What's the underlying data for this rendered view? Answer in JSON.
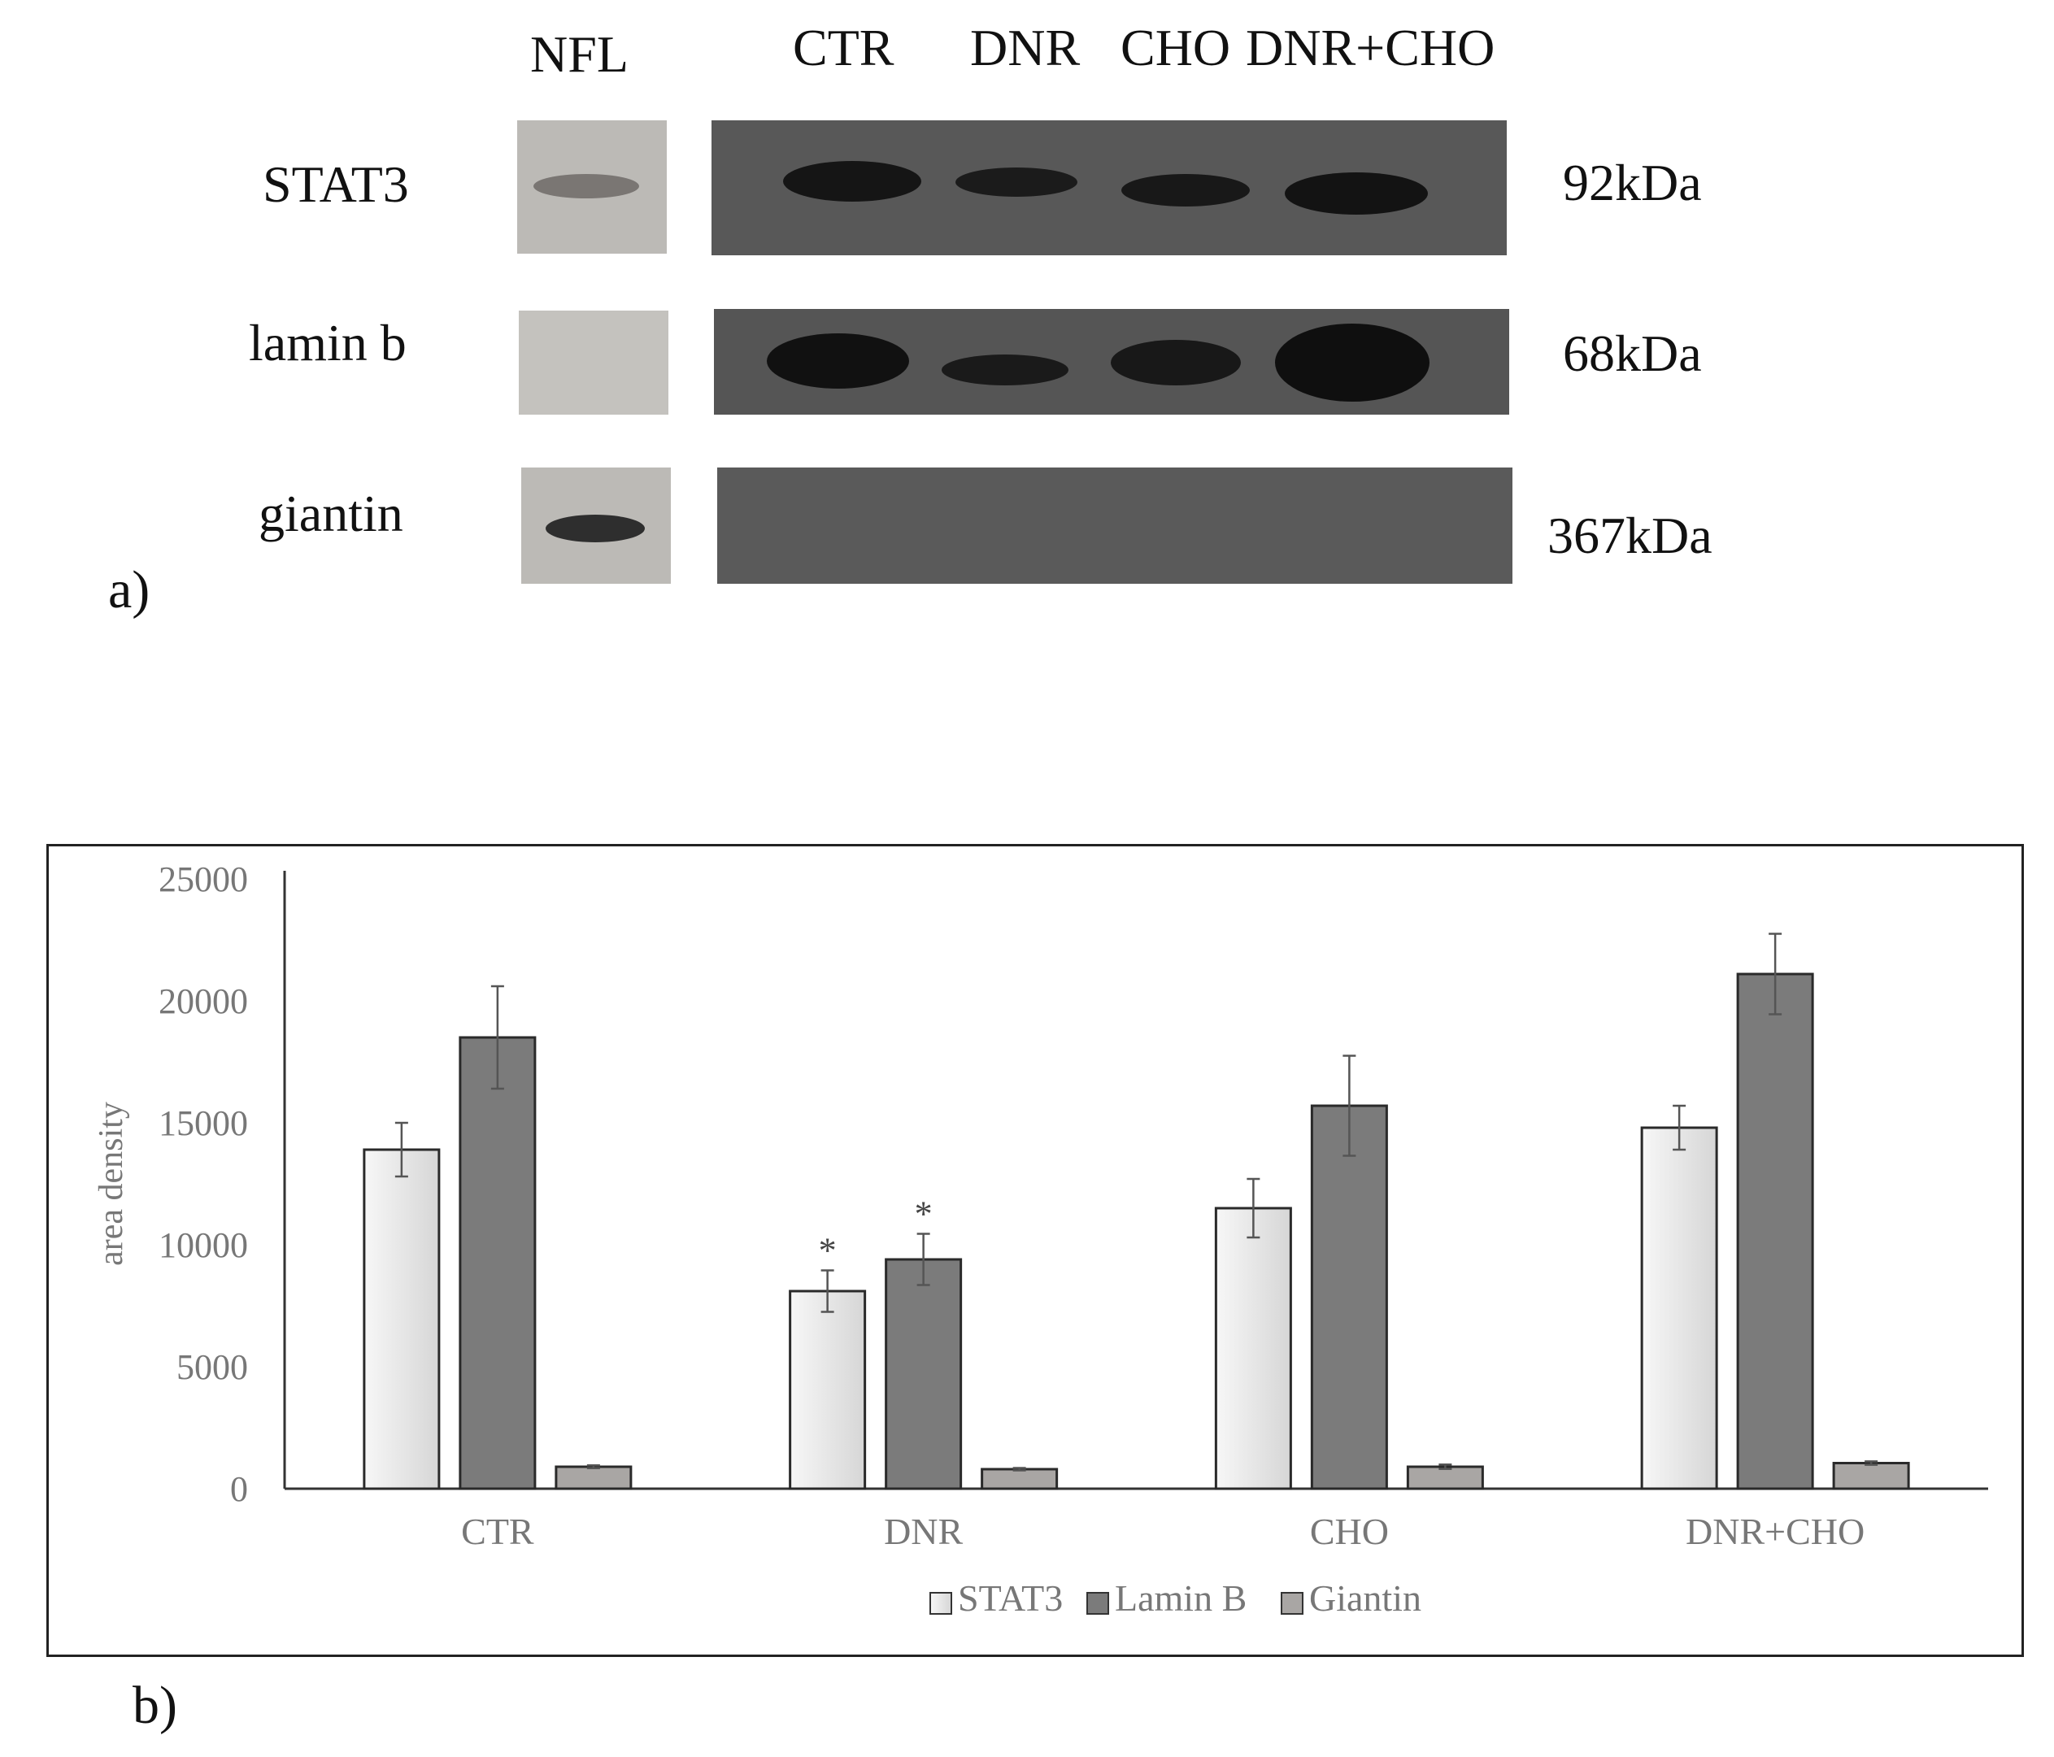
{
  "blot": {
    "lanes": [
      "NFL",
      "CTR",
      "DNR",
      "CHO",
      "DNR+CHO"
    ],
    "rows": [
      {
        "label": "STAT3",
        "kda": "92kDa"
      },
      {
        "label": "lamin b",
        "kda": "68kDa"
      },
      {
        "label": "giantin",
        "kda": "367kDa"
      }
    ],
    "panel_label": "a)"
  },
  "chart_panel_label": "b)",
  "chart_data": {
    "type": "bar",
    "categories": [
      "CTR",
      "DNR",
      "CHO",
      "DNR+CHO"
    ],
    "series": [
      {
        "name": "STAT3",
        "values": [
          13900,
          8100,
          11500,
          14800
        ],
        "errors": [
          1100,
          850,
          1200,
          900
        ],
        "color": "#eeeeee"
      },
      {
        "name": "Lamin B",
        "values": [
          18500,
          9400,
          15700,
          21100
        ],
        "errors": [
          2100,
          1050,
          2050,
          1650
        ],
        "color": "#7b7b7b"
      },
      {
        "name": "Giantin",
        "values": [
          900,
          800,
          900,
          1050
        ],
        "errors": [
          60,
          50,
          90,
          70
        ],
        "color": "#a9a6a4"
      }
    ],
    "significance": [
      {
        "category": "DNR",
        "series": "STAT3",
        "mark": "*"
      },
      {
        "category": "DNR",
        "series": "Lamin B",
        "mark": "*"
      }
    ],
    "ylabel": "area density",
    "xlabel": "",
    "ylim": [
      0,
      25000
    ],
    "yticks": [
      "0",
      "5000",
      "10000",
      "15000",
      "20000",
      "25000"
    ],
    "grid": false,
    "legend_position": "bottom"
  }
}
